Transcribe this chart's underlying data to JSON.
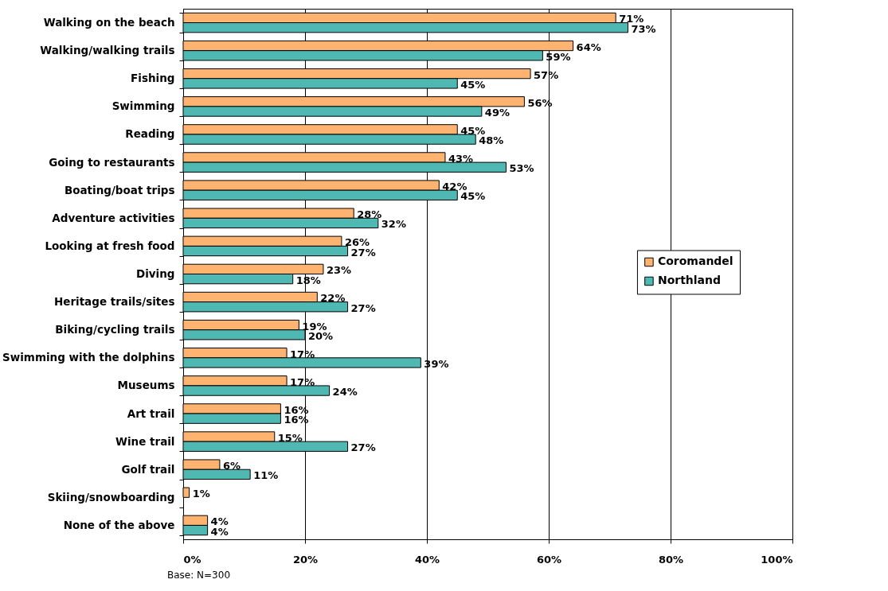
{
  "chart_data": {
    "type": "bar",
    "orientation": "horizontal",
    "categories": [
      "Walking on the beach",
      "Walking/walking trails",
      "Fishing",
      "Swimming",
      "Reading",
      "Going to restaurants",
      "Boating/boat trips",
      "Adventure activities",
      "Looking at fresh food",
      "Diving",
      "Heritage trails/sites",
      "Biking/cycling trails",
      "Swimming with the dolphins",
      "Museums",
      "Art trail",
      "Wine trail",
      "Golf trail",
      "Skiing/snowboarding",
      "None of the above"
    ],
    "series": [
      {
        "name": "Coromandel",
        "color": "#ffb370",
        "values": [
          71,
          64,
          57,
          56,
          45,
          43,
          42,
          28,
          26,
          23,
          22,
          19,
          17,
          17,
          16,
          15,
          6,
          1,
          4
        ],
        "value_labels": [
          "71%",
          "64%",
          "57%",
          "56%",
          "45%",
          "43%",
          "42%",
          "28%",
          "26%",
          "23%",
          "22%",
          "19%",
          "17%",
          "17%",
          "16%",
          "15%",
          "6%",
          "1%",
          "4%"
        ]
      },
      {
        "name": "Northland",
        "color": "#4fb8b3",
        "values": [
          73,
          59,
          45,
          49,
          48,
          53,
          45,
          32,
          27,
          18,
          27,
          20,
          39,
          24,
          16,
          27,
          11,
          null,
          4
        ],
        "value_labels": [
          "73%",
          "59%",
          "45%",
          "49%",
          "48%",
          "53%",
          "45%",
          "32%",
          "27%",
          "18%",
          "27%",
          "20%",
          "39%",
          "24%",
          "16%",
          "27%",
          "11%",
          null,
          "4%"
        ]
      }
    ],
    "xlim": [
      0,
      100
    ],
    "xticks": [
      {
        "value": 0,
        "label": "0%"
      },
      {
        "value": 20,
        "label": "20%"
      },
      {
        "value": 40,
        "label": "40%"
      },
      {
        "value": 60,
        "label": "60%"
      },
      {
        "value": 80,
        "label": "80%"
      },
      {
        "value": 100,
        "label": "100%"
      }
    ],
    "grid": "x",
    "legend": "right",
    "annotations": [
      "Base: N=300"
    ]
  }
}
